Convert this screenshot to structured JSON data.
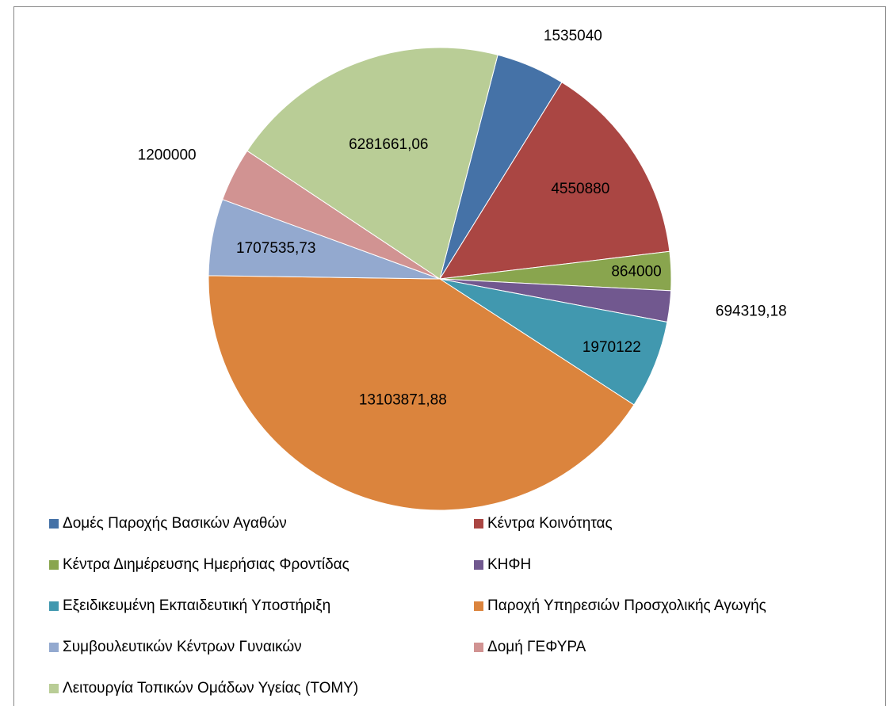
{
  "chart_data": {
    "type": "pie",
    "categories": [
      "Δομές Παροχής Βασικών Αγαθών",
      "Κέντρα Κοινότητας",
      "Κέντρα Διημέρευσης Ημερήσιας Φροντίδας",
      "ΚΗΦΗ",
      "Εξειδικευμένη Εκπαιδευτική Υποστήριξη",
      "Παροχή Υπηρεσιών Προσχολικής Αγωγής",
      "Συμβουλευτικών Κέντρων Γυναικών",
      "Δομή ΓΕΦΥΡΑ",
      "Λειτουργία Τοπικών Ομάδων Υγείας (ΤΟΜΥ)"
    ],
    "values": [
      1535040,
      4550880,
      864000,
      694319.18,
      1970122,
      13103871.88,
      1707535.73,
      1200000,
      6281661.06
    ],
    "value_labels": [
      "1535040",
      "4550880",
      "864000",
      "694319,18",
      "1970122",
      "13103871,88",
      "1707535,73",
      "1200000",
      "6281661,06"
    ],
    "colors": [
      "#4572a7",
      "#aa4643",
      "#89a54e",
      "#71588f",
      "#4198af",
      "#db843d",
      "#93a9cf",
      "#d19392",
      "#b9cd96"
    ],
    "legend": "bottom"
  }
}
